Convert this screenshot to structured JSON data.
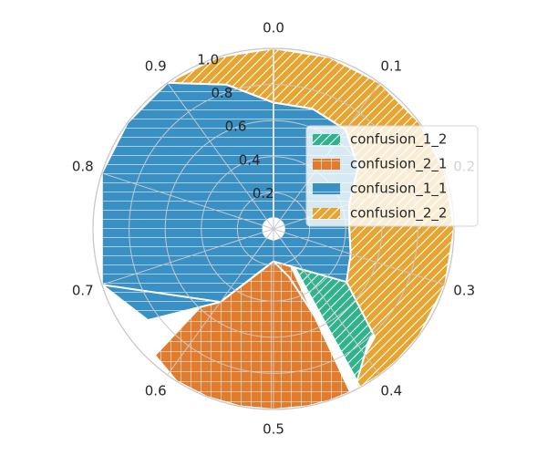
{
  "chart_data": {
    "type": "polar-area",
    "angle_ticks": [
      "0.0",
      "0.1",
      "0.2",
      "0.3",
      "0.4",
      "0.5",
      "0.6",
      "0.7",
      "0.8",
      "0.9"
    ],
    "radial_ticks": [
      "0.2",
      "0.4",
      "0.6",
      "0.8",
      "1.0"
    ],
    "rlim": [
      0,
      1.0
    ],
    "theta_range": [
      0,
      1.0
    ],
    "direction": "clockwise",
    "zero_location": "top",
    "grid": true,
    "legend_position": "right",
    "series": [
      {
        "name": "confusion_1_2",
        "color": "#2fb38c",
        "hatch": "diagonal",
        "theta": [
          0.35,
          0.36,
          0.37,
          0.38,
          0.39,
          0.4,
          0.41,
          0.42
        ],
        "r_inner": [
          0.22,
          0.22,
          0.22,
          0.22,
          0.22,
          0.22,
          0.22,
          0.22
        ],
        "r_outer": [
          0.84,
          0.82,
          0.8,
          0.8,
          0.82,
          0.86,
          0.92,
          0.96
        ]
      },
      {
        "name": "confusion_2_1",
        "color": "#e17c2f",
        "hatch": "grid",
        "theta": [
          0.43,
          0.45,
          0.47,
          0.5,
          0.53,
          0.56,
          0.59,
          0.62
        ],
        "r_inner": [
          0.06,
          0.06,
          0.06,
          0.06,
          0.06,
          0.06,
          0.06,
          0.06
        ],
        "r_outer": [
          1.0,
          1.0,
          1.0,
          1.0,
          1.0,
          1.0,
          1.0,
          0.96
        ]
      },
      {
        "name": "confusion_1_1",
        "color": "#3990c4",
        "hatch": "horizontal",
        "theta": [
          0.0,
          0.05,
          0.1,
          0.15,
          0.2,
          0.25,
          0.3,
          0.35,
          0.4,
          0.5,
          0.6,
          0.65,
          0.7,
          0.8,
          0.85,
          0.9,
          0.95,
          1.0
        ],
        "r_inner": [
          0.06,
          0.06,
          0.06,
          0.06,
          0.06,
          0.06,
          0.06,
          0.06,
          0.06,
          0.06,
          0.06,
          0.06,
          0.06,
          0.06,
          0.06,
          0.06,
          0.06,
          0.06
        ],
        "r_outer": [
          0.7,
          0.7,
          0.68,
          0.58,
          0.44,
          0.42,
          0.45,
          0.5,
          0.28,
          0.18,
          0.5,
          0.86,
          1.0,
          1.0,
          1.0,
          1.0,
          0.84,
          0.7
        ]
      },
      {
        "name": "confusion_2_2",
        "color": "#e5a631",
        "hatch": "diagonal",
        "theta": [
          0.0,
          0.05,
          0.1,
          0.15,
          0.2,
          0.25,
          0.3,
          0.35,
          0.38,
          0.4,
          0.42,
          0.45,
          0.5,
          0.6,
          0.7,
          0.8,
          0.85,
          0.9,
          0.95,
          1.0
        ],
        "r_inner": [
          0.7,
          0.7,
          0.68,
          0.58,
          0.44,
          0.42,
          0.45,
          0.5,
          0.82,
          0.86,
          0.96,
          0.28,
          0.18,
          0.5,
          1.0,
          1.0,
          1.0,
          1.0,
          0.84,
          0.7
        ],
        "r_outer": [
          1.0,
          1.0,
          1.0,
          1.0,
          1.0,
          1.0,
          1.0,
          1.0,
          1.0,
          1.0,
          1.0,
          0.28,
          0.18,
          0.5,
          1.0,
          1.0,
          1.0,
          1.0,
          1.0,
          1.0
        ]
      }
    ],
    "legend_order": [
      "confusion_1_2",
      "confusion_2_1",
      "confusion_1_1",
      "confusion_2_2"
    ]
  }
}
